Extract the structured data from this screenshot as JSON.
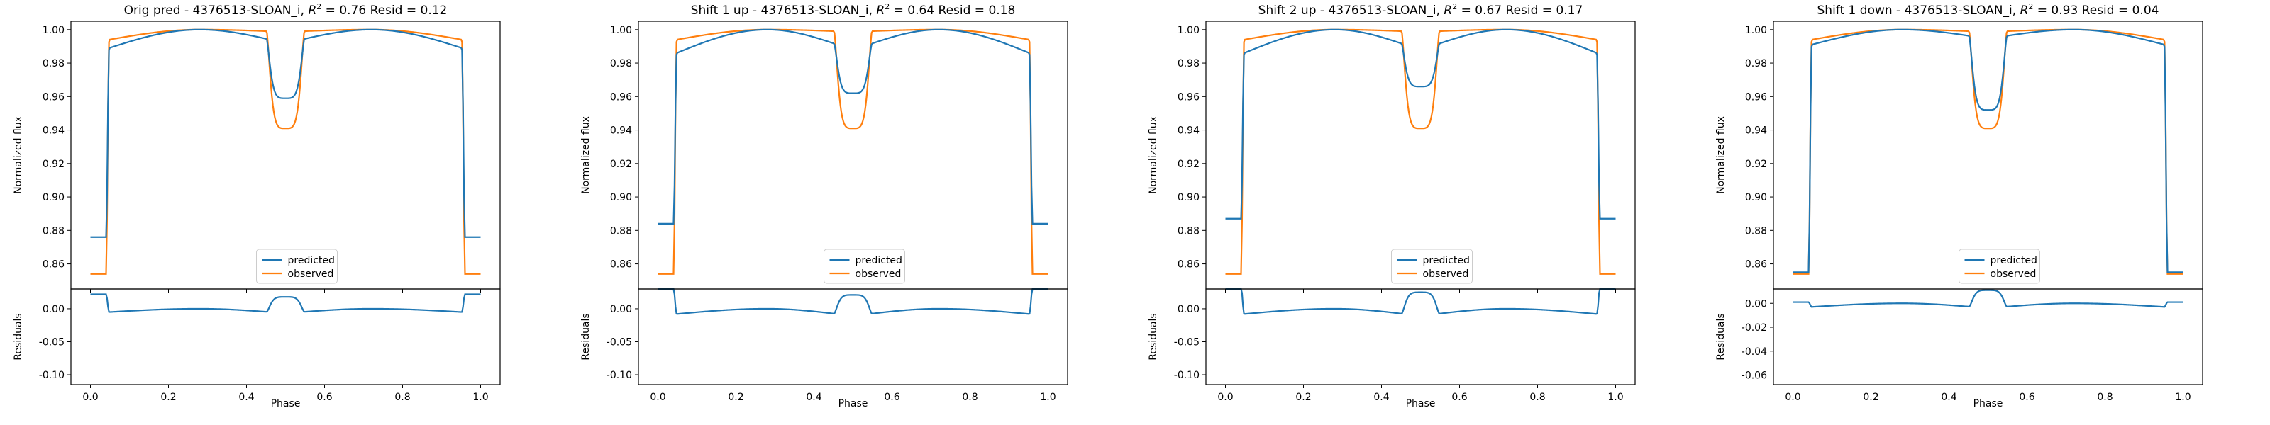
{
  "chart_data": [
    {
      "type": "line",
      "title_prefix": "Orig pred - 4376513-SLOAN_i, ",
      "title_r2": "R",
      "title_sup": "2",
      "title_suffix": " = 0.76 Resid = 0.12",
      "xlabel": "Phase",
      "ylabel_top": "Normalized flux",
      "ylabel_bottom": "Residuals",
      "xlim": [
        -0.05,
        1.05
      ],
      "ylim_top": [
        0.845,
        1.005
      ],
      "ylim_bottom": [
        -0.115,
        0.03
      ],
      "xticks": [
        "0.0",
        "0.2",
        "0.4",
        "0.6",
        "0.8",
        "1.0"
      ],
      "yticks_top": [
        "0.86",
        "0.88",
        "0.90",
        "0.92",
        "0.94",
        "0.96",
        "0.98",
        "1.00"
      ],
      "yticks_bottom": [
        "0.00",
        "-0.05",
        "-0.10"
      ],
      "legend": [
        "predicted",
        "observed"
      ],
      "legend_position": "lower center",
      "predicted": {
        "out_level": 0.876,
        "edge": 0.989,
        "top": 1.0,
        "dip": 0.959
      },
      "observed": {
        "out_level": 0.854,
        "edge": 0.994,
        "top": 1.0,
        "dip": 0.941
      }
    },
    {
      "type": "line",
      "title_prefix": "Shift 1 up - 4376513-SLOAN_i, ",
      "title_r2": "R",
      "title_sup": "2",
      "title_suffix": " = 0.64 Resid = 0.18",
      "xlabel": "Phase",
      "ylabel_top": "Normalized flux",
      "ylabel_bottom": "Residuals",
      "xlim": [
        -0.05,
        1.05
      ],
      "ylim_top": [
        0.845,
        1.005
      ],
      "ylim_bottom": [
        -0.115,
        0.03
      ],
      "xticks": [
        "0.0",
        "0.2",
        "0.4",
        "0.6",
        "0.8",
        "1.0"
      ],
      "yticks_top": [
        "0.86",
        "0.88",
        "0.90",
        "0.92",
        "0.94",
        "0.96",
        "0.98",
        "1.00"
      ],
      "yticks_bottom": [
        "0.00",
        "-0.05",
        "-0.10"
      ],
      "legend": [
        "predicted",
        "observed"
      ],
      "legend_position": "lower center",
      "predicted": {
        "out_level": 0.884,
        "edge": 0.986,
        "top": 1.0,
        "dip": 0.962
      },
      "observed": {
        "out_level": 0.854,
        "edge": 0.994,
        "top": 1.0,
        "dip": 0.941
      }
    },
    {
      "type": "line",
      "title_prefix": "Shift 2 up - 4376513-SLOAN_i, ",
      "title_r2": "R",
      "title_sup": "2",
      "title_suffix": " = 0.67 Resid = 0.17",
      "xlabel": "Phase",
      "ylabel_top": "Normalized flux",
      "ylabel_bottom": "Residuals",
      "xlim": [
        -0.05,
        1.05
      ],
      "ylim_top": [
        0.845,
        1.005
      ],
      "ylim_bottom": [
        -0.115,
        0.03
      ],
      "xticks": [
        "0.0",
        "0.2",
        "0.4",
        "0.6",
        "0.8",
        "1.0"
      ],
      "yticks_top": [
        "0.86",
        "0.88",
        "0.90",
        "0.92",
        "0.94",
        "0.96",
        "0.98",
        "1.00"
      ],
      "yticks_bottom": [
        "0.00",
        "-0.05",
        "-0.10"
      ],
      "legend": [
        "predicted",
        "observed"
      ],
      "legend_position": "lower center",
      "predicted": {
        "out_level": 0.887,
        "edge": 0.986,
        "top": 1.0,
        "dip": 0.966
      },
      "observed": {
        "out_level": 0.854,
        "edge": 0.994,
        "top": 1.0,
        "dip": 0.941
      }
    },
    {
      "type": "line",
      "title_prefix": "Shift 1 down - 4376513-SLOAN_i, ",
      "title_r2": "R",
      "title_sup": "2",
      "title_suffix": " = 0.93 Resid = 0.04",
      "xlabel": "Phase",
      "ylabel_top": "Normalized flux",
      "ylabel_bottom": "Residuals",
      "xlim": [
        -0.05,
        1.05
      ],
      "ylim_top": [
        0.845,
        1.005
      ],
      "ylim_bottom": [
        -0.068,
        0.012
      ],
      "xticks": [
        "0.0",
        "0.2",
        "0.4",
        "0.6",
        "0.8",
        "1.0"
      ],
      "yticks_top": [
        "0.86",
        "0.88",
        "0.90",
        "0.92",
        "0.94",
        "0.96",
        "0.98",
        "1.00"
      ],
      "yticks_bottom": [
        "0.00",
        "-0.02",
        "-0.04",
        "-0.06"
      ],
      "legend": [
        "predicted",
        "observed"
      ],
      "legend_position": "lower center",
      "predicted": {
        "out_level": 0.855,
        "edge": 0.991,
        "top": 1.0,
        "dip": 0.952
      },
      "observed": {
        "out_level": 0.854,
        "edge": 0.994,
        "top": 1.0,
        "dip": 0.941
      }
    }
  ],
  "colors": {
    "predicted": "#1f77b4",
    "observed": "#ff7f0e",
    "axes": "#000000"
  }
}
